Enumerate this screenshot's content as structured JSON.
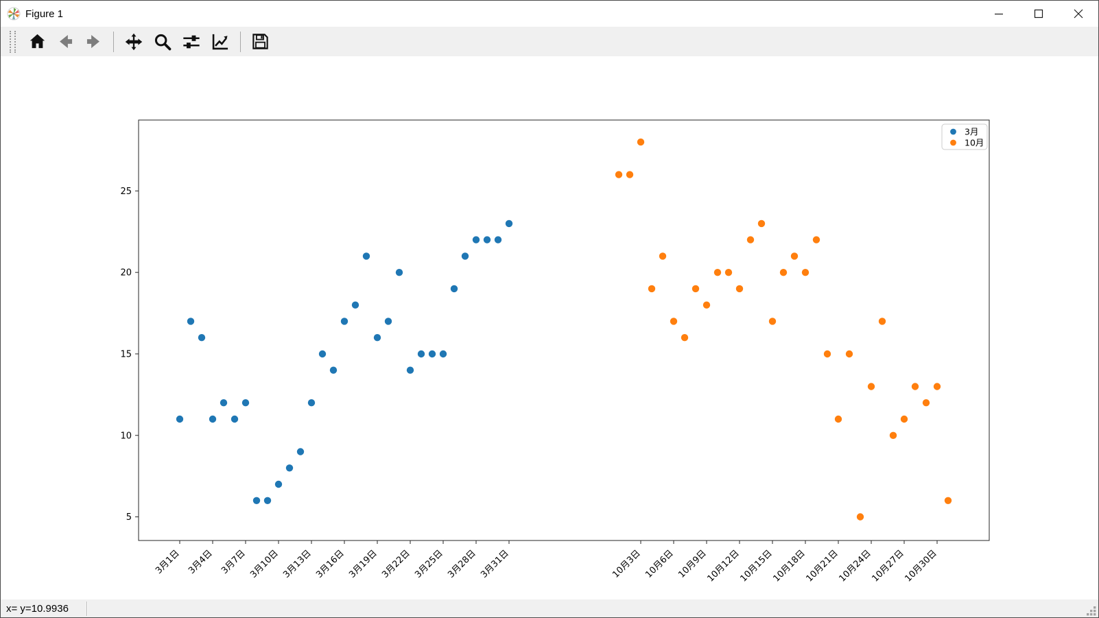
{
  "window": {
    "title": "Figure 1",
    "controls": {
      "minimize": "minimize",
      "maximize": "maximize",
      "close": "close"
    }
  },
  "toolbar": {
    "buttons": [
      {
        "icon": "home-icon"
      },
      {
        "icon": "back-arrow-icon",
        "disabled": true
      },
      {
        "icon": "forward-arrow-icon",
        "disabled": true
      },
      {
        "icon": "pan-move-icon"
      },
      {
        "icon": "zoom-magnifier-icon"
      },
      {
        "icon": "configure-subplots-sliders-icon"
      },
      {
        "icon": "customize-chart-icon"
      },
      {
        "icon": "save-floppy-icon"
      }
    ]
  },
  "statusbar": {
    "text": "x= y=10.9936"
  },
  "chart_data": {
    "type": "scatter",
    "title": "",
    "xlabel": "",
    "ylabel": "",
    "grid": false,
    "xlim": [
      -2.75,
      74.75
    ],
    "ylim": [
      3.55,
      29.35
    ],
    "yticks": [
      5,
      10,
      15,
      20,
      25
    ],
    "xticks": [
      {
        "u": 1,
        "label": "3月1日"
      },
      {
        "u": 4,
        "label": "3月4日"
      },
      {
        "u": 7,
        "label": "3月7日"
      },
      {
        "u": 10,
        "label": "3月10日"
      },
      {
        "u": 13,
        "label": "3月13日"
      },
      {
        "u": 16,
        "label": "3月16日"
      },
      {
        "u": 19,
        "label": "3月19日"
      },
      {
        "u": 22,
        "label": "3月22日"
      },
      {
        "u": 25,
        "label": "3月25日"
      },
      {
        "u": 28,
        "label": "3月28日"
      },
      {
        "u": 31,
        "label": "3月31日"
      },
      {
        "u": 43,
        "label": "10月3日"
      },
      {
        "u": 46,
        "label": "10月6日"
      },
      {
        "u": 49,
        "label": "10月9日"
      },
      {
        "u": 52,
        "label": "10月12日"
      },
      {
        "u": 55,
        "label": "10月15日"
      },
      {
        "u": 58,
        "label": "10月18日"
      },
      {
        "u": 61,
        "label": "10月21日"
      },
      {
        "u": 64,
        "label": "10月24日"
      },
      {
        "u": 67,
        "label": "10月27日"
      },
      {
        "u": 70,
        "label": "10月30日"
      }
    ],
    "series": [
      {
        "name": "3月",
        "color": "#1f77b4",
        "x_start": 1,
        "days": [
          1,
          2,
          3,
          4,
          5,
          6,
          7,
          8,
          9,
          10,
          11,
          12,
          13,
          14,
          15,
          16,
          17,
          18,
          19,
          20,
          21,
          22,
          23,
          24,
          25,
          26,
          27,
          28,
          29,
          30,
          31
        ],
        "values": [
          11,
          17,
          16,
          11,
          12,
          11,
          12,
          6,
          6,
          7,
          8,
          9,
          12,
          15,
          14,
          17,
          18,
          21,
          16,
          17,
          20,
          14,
          15,
          15,
          15,
          19,
          21,
          22,
          22,
          22,
          23
        ]
      },
      {
        "name": "10月",
        "color": "#ff7f0e",
        "x_start": 41,
        "days": [
          1,
          2,
          3,
          4,
          5,
          6,
          7,
          8,
          9,
          10,
          11,
          12,
          13,
          14,
          15,
          16,
          17,
          18,
          19,
          20,
          21,
          22,
          23,
          24,
          25,
          26,
          27,
          28,
          29,
          30,
          31
        ],
        "values": [
          26,
          26,
          28,
          19,
          21,
          17,
          16,
          19,
          18,
          20,
          20,
          19,
          22,
          23,
          17,
          20,
          21,
          20,
          22,
          15,
          11,
          15,
          5,
          13,
          17,
          10,
          11,
          13,
          12,
          13,
          6
        ]
      }
    ],
    "legend": {
      "position": "upper-right",
      "entries": [
        "3月",
        "10月"
      ]
    },
    "marker_radius": 5.2
  }
}
